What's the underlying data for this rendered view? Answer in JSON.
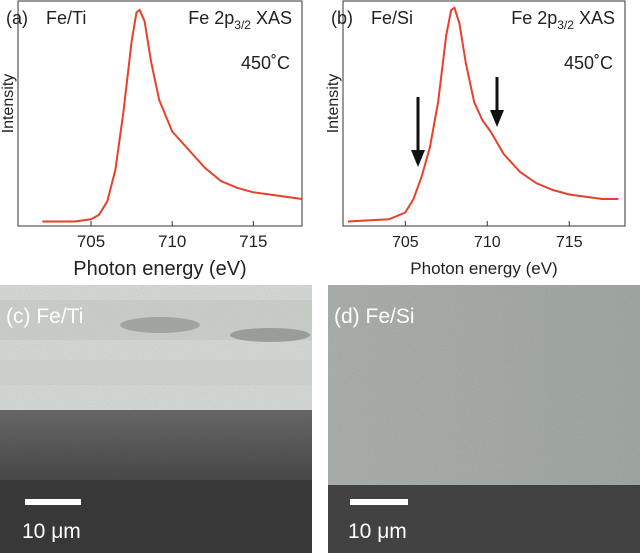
{
  "chart_data": [
    {
      "type": "line",
      "panel": "(a)",
      "sample": "Fe/Ti",
      "annotation": {
        "main": "Fe 2p",
        "sub": "3/2",
        "tail": "XAS"
      },
      "temperature": "450˚C",
      "ylabel": "Intensity",
      "xlabel": "Photon energy (eV)",
      "xlim": [
        700.5,
        718
      ],
      "xticks": [
        705,
        710,
        715
      ],
      "ylim": [
        0,
        1
      ],
      "color": "#e8402a",
      "x": [
        702,
        704,
        705,
        705.5,
        706,
        706.5,
        707,
        707.5,
        707.8,
        708,
        708.3,
        708.7,
        709.2,
        710,
        711,
        712,
        713,
        714,
        715,
        716,
        717,
        718
      ],
      "values": [
        0.02,
        0.02,
        0.03,
        0.05,
        0.11,
        0.25,
        0.51,
        0.82,
        0.95,
        0.96,
        0.91,
        0.73,
        0.56,
        0.42,
        0.34,
        0.26,
        0.2,
        0.17,
        0.15,
        0.14,
        0.13,
        0.12
      ]
    },
    {
      "type": "line",
      "panel": "(b)",
      "sample": "Fe/Si",
      "annotation": {
        "main": "Fe 2p",
        "sub": "3/2",
        "tail": "XAS"
      },
      "temperature": "450˚C",
      "ylabel": "Intensity",
      "xlabel": "Photon energy (eV)",
      "xlim": [
        701.2,
        718.4
      ],
      "xticks": [
        705,
        710,
        715
      ],
      "ylim": [
        0,
        1
      ],
      "color": "#e8402a",
      "x": [
        701.5,
        704,
        705,
        705.5,
        706,
        706.5,
        707,
        707.5,
        707.8,
        708,
        708.3,
        708.7,
        709.2,
        709.7,
        710.2,
        711,
        712,
        713,
        714,
        715,
        716,
        717,
        718
      ],
      "values": [
        0.02,
        0.03,
        0.06,
        0.12,
        0.22,
        0.35,
        0.55,
        0.85,
        0.96,
        0.97,
        0.9,
        0.72,
        0.55,
        0.47,
        0.42,
        0.32,
        0.24,
        0.19,
        0.16,
        0.14,
        0.13,
        0.12,
        0.12
      ]
    }
  ],
  "images": [
    {
      "label": "(c) Fe/Ti",
      "scale_bar": "10 μm"
    },
    {
      "label": "(d) Fe/Si",
      "scale_bar": "10 μm"
    }
  ]
}
